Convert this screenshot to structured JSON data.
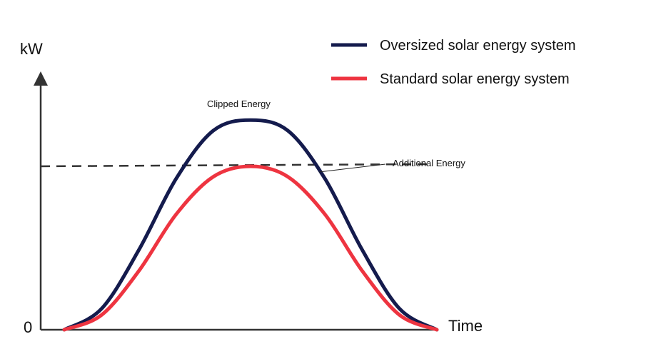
{
  "chart_data": {
    "type": "line",
    "title": "",
    "ylabel": "kW",
    "xlabel": "Time",
    "y_origin_label": "0",
    "xlim": [
      0,
      1
    ],
    "ylim": [
      0,
      1.26
    ],
    "grid": false,
    "legend_position": "top-right",
    "series": [
      {
        "name": "Oversized solar energy system",
        "color": "#141b4d",
        "points": [
          [
            0.0,
            0.0
          ],
          [
            0.1,
            0.1
          ],
          [
            0.2,
            0.38
          ],
          [
            0.3,
            0.72
          ],
          [
            0.4,
            0.95
          ],
          [
            0.5,
            1.0
          ],
          [
            0.6,
            0.95
          ],
          [
            0.7,
            0.72
          ],
          [
            0.8,
            0.38
          ],
          [
            0.9,
            0.1
          ],
          [
            1.0,
            0.0
          ]
        ]
      },
      {
        "name": "Standard solar energy system",
        "color": "#ee3440",
        "points": [
          [
            0.0,
            0.0
          ],
          [
            0.1,
            0.07
          ],
          [
            0.2,
            0.28
          ],
          [
            0.3,
            0.55
          ],
          [
            0.4,
            0.73
          ],
          [
            0.5,
            0.78
          ],
          [
            0.6,
            0.73
          ],
          [
            0.7,
            0.55
          ],
          [
            0.8,
            0.28
          ],
          [
            0.9,
            0.07
          ],
          [
            1.0,
            0.0
          ]
        ]
      }
    ],
    "limit_line": {
      "y": 0.78,
      "style": "dashed",
      "color": "#333333"
    },
    "annotations": {
      "clipped": "Clipped Energy",
      "additional": "Additional Energy"
    }
  }
}
